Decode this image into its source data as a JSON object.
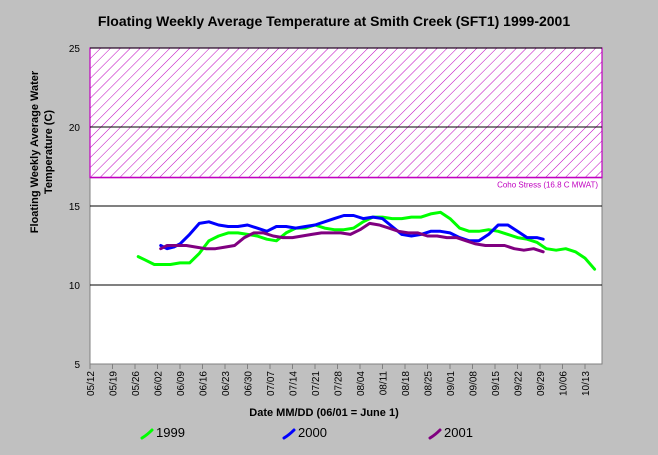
{
  "chart_data": {
    "type": "line",
    "title": "Floating Weekly Average Temperature at Smith Creek (SFT1) 1999-2001",
    "xlabel": "Date MM/DD (06/01 = June 1)",
    "ylabel": "Floating Weekly Average Water Temperature (C)",
    "ylim": [
      5,
      25
    ],
    "yticks": [
      5,
      10,
      15,
      20,
      25
    ],
    "x_tick_labels": [
      "05/12",
      "05/19",
      "05/26",
      "06/02",
      "06/09",
      "06/16",
      "06/23",
      "06/30",
      "07/07",
      "07/14",
      "07/21",
      "07/28",
      "08/04",
      "08/11",
      "08/18",
      "08/25",
      "09/01",
      "09/08",
      "09/15",
      "09/22",
      "09/29",
      "10/06",
      "10/13"
    ],
    "grid": "horizontal",
    "legend_position": "bottom",
    "threshold": {
      "label": "Coho Stress (16.8 C MWAT)",
      "value": 16.8,
      "color": "#c000c0"
    },
    "series": [
      {
        "name": "1999",
        "color": "#00ff00",
        "x": [
          "05/27",
          "05/29",
          "06/01",
          "06/03",
          "06/06",
          "06/09",
          "06/12",
          "06/15",
          "06/18",
          "06/21",
          "06/24",
          "06/27",
          "06/30",
          "07/03",
          "07/06",
          "07/09",
          "07/12",
          "07/15",
          "07/18",
          "07/21",
          "07/24",
          "07/27",
          "07/30",
          "08/02",
          "08/05",
          "08/08",
          "08/11",
          "08/14",
          "08/17",
          "08/20",
          "08/23",
          "08/26",
          "08/29",
          "09/01",
          "09/04",
          "09/07",
          "09/10",
          "09/13",
          "09/16",
          "09/19",
          "09/22",
          "09/25",
          "09/28",
          "10/01",
          "10/04",
          "10/07",
          "10/10",
          "10/13",
          "10/16"
        ],
        "y": [
          11.8,
          11.6,
          11.3,
          11.3,
          11.3,
          11.4,
          11.4,
          12.0,
          12.8,
          13.1,
          13.3,
          13.3,
          13.2,
          13.1,
          12.9,
          12.8,
          13.3,
          13.6,
          13.6,
          13.8,
          13.6,
          13.5,
          13.5,
          13.6,
          14.0,
          14.3,
          14.3,
          14.2,
          14.2,
          14.3,
          14.3,
          14.5,
          14.6,
          14.2,
          13.6,
          13.4,
          13.4,
          13.5,
          13.4,
          13.2,
          13.0,
          12.9,
          12.7,
          12.3,
          12.2,
          12.3,
          12.1,
          11.7,
          11.0
        ]
      },
      {
        "name": "2000",
        "color": "#0000ff",
        "x": [
          "06/03",
          "06/05",
          "06/07",
          "06/09",
          "06/12",
          "06/15",
          "06/18",
          "06/21",
          "06/24",
          "06/27",
          "06/30",
          "07/03",
          "07/06",
          "07/09",
          "07/12",
          "07/15",
          "07/18",
          "07/21",
          "07/24",
          "07/27",
          "07/30",
          "08/02",
          "08/05",
          "08/08",
          "08/11",
          "08/14",
          "08/17",
          "08/20",
          "08/23",
          "08/26",
          "08/29",
          "09/01",
          "09/04",
          "09/07",
          "09/10",
          "09/13",
          "09/16",
          "09/19",
          "09/22",
          "09/25",
          "09/28",
          "09/30"
        ],
        "y": [
          12.5,
          12.3,
          12.4,
          12.6,
          13.2,
          13.9,
          14.0,
          13.8,
          13.7,
          13.7,
          13.8,
          13.6,
          13.4,
          13.7,
          13.7,
          13.6,
          13.7,
          13.8,
          14.0,
          14.2,
          14.4,
          14.4,
          14.2,
          14.3,
          14.2,
          13.7,
          13.2,
          13.1,
          13.2,
          13.4,
          13.4,
          13.3,
          13.0,
          12.8,
          12.8,
          13.2,
          13.8,
          13.8,
          13.4,
          13.0,
          13.0,
          12.9
        ]
      },
      {
        "name": "2001",
        "color": "#800080",
        "x": [
          "06/03",
          "06/05",
          "06/08",
          "06/11",
          "06/14",
          "06/17",
          "06/20",
          "06/23",
          "06/26",
          "06/29",
          "07/02",
          "07/05",
          "07/08",
          "07/11",
          "07/14",
          "07/17",
          "07/20",
          "07/23",
          "07/26",
          "07/29",
          "08/01",
          "08/04",
          "08/07",
          "08/10",
          "08/13",
          "08/16",
          "08/19",
          "08/22",
          "08/25",
          "08/28",
          "08/31",
          "09/03",
          "09/06",
          "09/09",
          "09/12",
          "09/15",
          "09/18",
          "09/21",
          "09/24",
          "09/27",
          "09/30"
        ],
        "y": [
          12.3,
          12.5,
          12.5,
          12.5,
          12.4,
          12.3,
          12.3,
          12.4,
          12.5,
          13.0,
          13.3,
          13.3,
          13.1,
          13.0,
          13.0,
          13.1,
          13.2,
          13.3,
          13.3,
          13.3,
          13.2,
          13.5,
          13.9,
          13.8,
          13.6,
          13.4,
          13.3,
          13.3,
          13.1,
          13.1,
          13.0,
          13.0,
          12.8,
          12.6,
          12.5,
          12.5,
          12.5,
          12.3,
          12.2,
          12.3,
          12.1
        ]
      }
    ]
  }
}
